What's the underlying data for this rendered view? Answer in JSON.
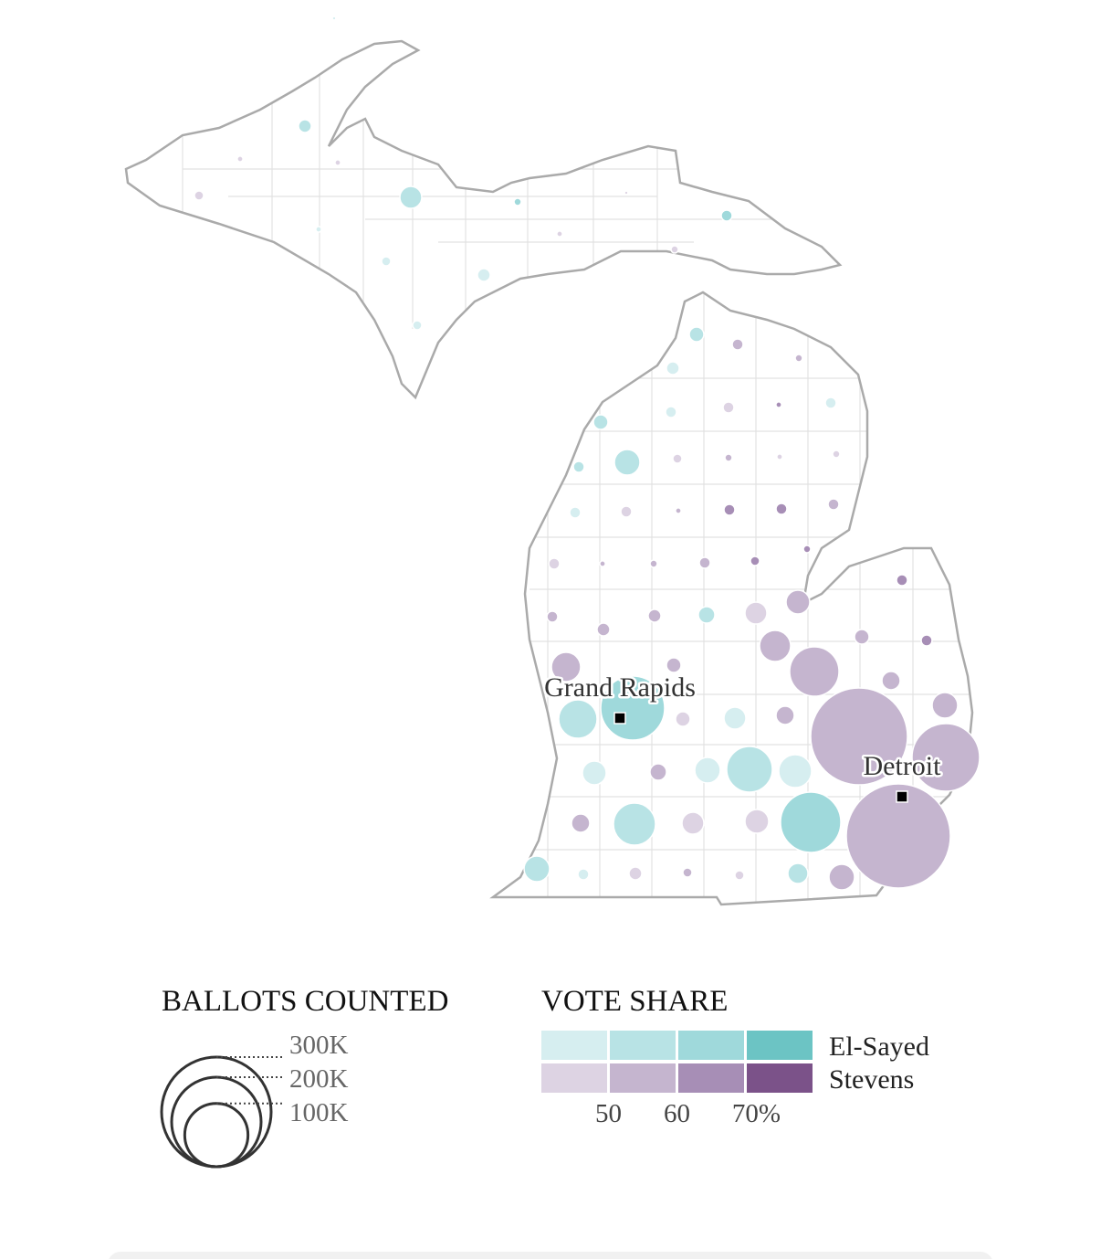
{
  "chart_data": {
    "type": "bubble_map",
    "series": [
      {
        "name": "El-Sayed",
        "colors": [
          "#d6eef0",
          "#b8e3e5",
          "#9fd9db",
          "#6cc4c4"
        ],
        "values": [
          0.3,
          4.1,
          12,
          1.3,
          3,
          0.8,
          2.1,
          4.1,
          2.1,
          5.3,
          4.1,
          3,
          5.3,
          3,
          16.3,
          3,
          3,
          6.8,
          36.8,
          102.1,
          12,
          14.1,
          16.3,
          52.1,
          27,
          44.1,
          90.8,
          16.3,
          3,
          10.1
        ],
        "shares": [
          45,
          55,
          55,
          65,
          65,
          45,
          45,
          45,
          45,
          55,
          45,
          45,
          55,
          45,
          55,
          55,
          45,
          55,
          55,
          65,
          45,
          45,
          45,
          55,
          45,
          55,
          65,
          55,
          45,
          55
        ]
      },
      {
        "name": "Stevens",
        "colors": [
          "#ddd3e3",
          "#c5b5cf",
          "#a78eb6",
          "#7b5289"
        ],
        "values": [
          0.8,
          0.8,
          2.1,
          0.3,
          0.8,
          1.3,
          3,
          1.3,
          3,
          0.8,
          2.1,
          1.3,
          0.8,
          1.3,
          3,
          0.8,
          3,
          3,
          3,
          3,
          0.8,
          1.3,
          3,
          2.1,
          1.3,
          3,
          3,
          4.1,
          4.1,
          12,
          14.1,
          24.1,
          5.3,
          3,
          21.3,
          5.3,
          60.8,
          8.3,
          16.3,
          5.3,
          8.3,
          234.1,
          114.1,
          6.8,
          8.3,
          12,
          14.1,
          270.8,
          4.1,
          2.1,
          2.1,
          16.3
        ],
        "shares": [
          45,
          45,
          45,
          45,
          45,
          45,
          55,
          55,
          45,
          65,
          45,
          55,
          45,
          45,
          45,
          55,
          65,
          65,
          55,
          45,
          55,
          55,
          55,
          65,
          65,
          65,
          55,
          55,
          55,
          45,
          55,
          55,
          55,
          65,
          55,
          55,
          55,
          55,
          55,
          45,
          55,
          55,
          55,
          55,
          55,
          45,
          45,
          55,
          45,
          55,
          45,
          55
        ]
      }
    ],
    "cities": [
      "Grand Rapids",
      "Detroit"
    ],
    "size_legend": {
      "title": "BALLOTS COUNTED",
      "ticks": [
        {
          "value": 300,
          "label": "300K"
        },
        {
          "value": 200,
          "label": "200K"
        },
        {
          "value": 100,
          "label": "100K"
        }
      ]
    },
    "color_legend": {
      "title": "VOTE SHARE",
      "ticks": [
        50,
        60,
        {
          "value": 70,
          "label": "70%"
        }
      ]
    }
  }
}
